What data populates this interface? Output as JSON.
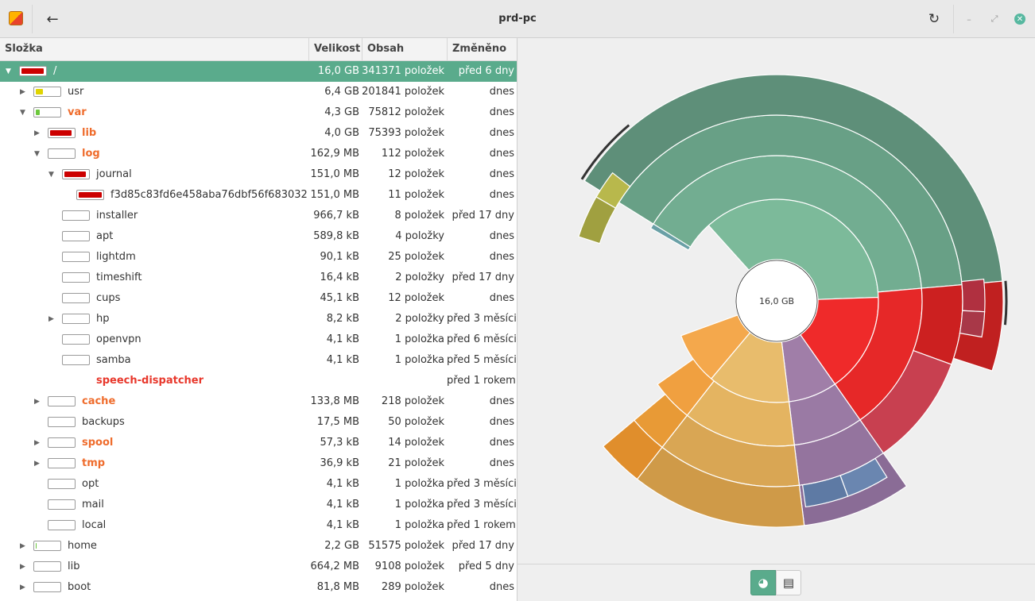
{
  "window": {
    "title": "prd-pc"
  },
  "icons": {
    "back": "arrow-left-icon",
    "refresh": "refresh-icon",
    "minimize": "minimize-icon",
    "maximize": "maximize-icon",
    "close": "close-icon"
  },
  "header": {
    "folder": "Složka",
    "size": "Velikost",
    "contents": "Obsah",
    "modified": "Změněno"
  },
  "rows": [
    {
      "depth": 0,
      "expander": "open",
      "name": "/",
      "style": "normal",
      "fill": 0.95,
      "fillColor": "#cc0000",
      "size": "16,0 GB",
      "items": "341371 položek",
      "modified": "před 6 dny",
      "selected": true
    },
    {
      "depth": 1,
      "expander": "closed",
      "name": "usr",
      "style": "normal",
      "fill": 0.3,
      "fillColor": "#e0d400",
      "size": "6,4 GB",
      "items": "201841 položek",
      "modified": "dnes"
    },
    {
      "depth": 1,
      "expander": "open",
      "name": "var",
      "style": "orange",
      "fill": 0.18,
      "fillColor": "#6cc83c",
      "size": "4,3 GB",
      "items": "75812 položek",
      "modified": "dnes"
    },
    {
      "depth": 2,
      "expander": "closed",
      "name": "lib",
      "style": "orange",
      "fill": 0.92,
      "fillColor": "#cc0000",
      "size": "4,0 GB",
      "items": "75393 položek",
      "modified": "dnes"
    },
    {
      "depth": 2,
      "expander": "open",
      "name": "log",
      "style": "orange",
      "fill": 0,
      "fillColor": "#cc0000",
      "size": "162,9 MB",
      "items": "112 položek",
      "modified": "dnes"
    },
    {
      "depth": 3,
      "expander": "open",
      "name": "journal",
      "style": "normal",
      "fill": 0.92,
      "fillColor": "#cc0000",
      "size": "151,0 MB",
      "items": "12 položek",
      "modified": "dnes"
    },
    {
      "depth": 4,
      "expander": "none",
      "name": "f3d85c83fd6e458aba76dbf56f683032",
      "style": "normal",
      "fill": 1,
      "fillColor": "#cc0000",
      "size": "151,0 MB",
      "items": "11 položek",
      "modified": "dnes"
    },
    {
      "depth": 3,
      "expander": "none",
      "name": "installer",
      "style": "normal",
      "fill": 0,
      "fillColor": "#cc0000",
      "size": "966,7 kB",
      "items": "8 položek",
      "modified": "před 17 dny"
    },
    {
      "depth": 3,
      "expander": "none",
      "name": "apt",
      "style": "normal",
      "fill": 0,
      "fillColor": "#cc0000",
      "size": "589,8 kB",
      "items": "4 položky",
      "modified": "dnes"
    },
    {
      "depth": 3,
      "expander": "none",
      "name": "lightdm",
      "style": "normal",
      "fill": 0,
      "fillColor": "#cc0000",
      "size": "90,1 kB",
      "items": "25 položek",
      "modified": "dnes"
    },
    {
      "depth": 3,
      "expander": "none",
      "name": "timeshift",
      "style": "normal",
      "fill": 0,
      "fillColor": "#cc0000",
      "size": "16,4 kB",
      "items": "2 položky",
      "modified": "před 17 dny"
    },
    {
      "depth": 3,
      "expander": "none",
      "name": "cups",
      "style": "normal",
      "fill": 0,
      "fillColor": "#cc0000",
      "size": "45,1 kB",
      "items": "12 položek",
      "modified": "dnes"
    },
    {
      "depth": 3,
      "expander": "closed",
      "name": "hp",
      "style": "normal",
      "fill": 0,
      "fillColor": "#cc0000",
      "size": "8,2 kB",
      "items": "2 položky",
      "modified": "před 3 měsíci"
    },
    {
      "depth": 3,
      "expander": "none",
      "name": "openvpn",
      "style": "normal",
      "fill": 0,
      "fillColor": "#cc0000",
      "size": "4,1 kB",
      "items": "1 položka",
      "modified": "před 6 měsíci"
    },
    {
      "depth": 3,
      "expander": "none",
      "name": "samba",
      "style": "normal",
      "fill": 0,
      "fillColor": "#cc0000",
      "size": "4,1 kB",
      "items": "1 položka",
      "modified": "před 5 měsíci"
    },
    {
      "depth": 3,
      "expander": "none",
      "name": "speech-dispatcher",
      "style": "red",
      "nobar": true,
      "size": "",
      "items": "",
      "modified": "před 1 rokem"
    },
    {
      "depth": 2,
      "expander": "closed",
      "name": "cache",
      "style": "orange",
      "fill": 0,
      "fillColor": "#cc0000",
      "size": "133,8 MB",
      "items": "218 položek",
      "modified": "dnes"
    },
    {
      "depth": 2,
      "expander": "none",
      "name": "backups",
      "style": "normal",
      "fill": 0,
      "fillColor": "#cc0000",
      "size": "17,5 MB",
      "items": "50 položek",
      "modified": "dnes"
    },
    {
      "depth": 2,
      "expander": "closed",
      "name": "spool",
      "style": "orange",
      "fill": 0,
      "fillColor": "#cc0000",
      "size": "57,3 kB",
      "items": "14 položek",
      "modified": "dnes"
    },
    {
      "depth": 2,
      "expander": "closed",
      "name": "tmp",
      "style": "orange",
      "fill": 0,
      "fillColor": "#cc0000",
      "size": "36,9 kB",
      "items": "21 položek",
      "modified": "dnes"
    },
    {
      "depth": 2,
      "expander": "none",
      "name": "opt",
      "style": "normal",
      "fill": 0,
      "fillColor": "#cc0000",
      "size": "4,1 kB",
      "items": "1 položka",
      "modified": "před 3 měsíci"
    },
    {
      "depth": 2,
      "expander": "none",
      "name": "mail",
      "style": "normal",
      "fill": 0,
      "fillColor": "#cc0000",
      "size": "4,1 kB",
      "items": "1 položka",
      "modified": "před 3 měsíci"
    },
    {
      "depth": 2,
      "expander": "none",
      "name": "local",
      "style": "normal",
      "fill": 0,
      "fillColor": "#cc0000",
      "size": "4,1 kB",
      "items": "1 položka",
      "modified": "před 1 rokem"
    },
    {
      "depth": 1,
      "expander": "closed",
      "name": "home",
      "style": "normal",
      "fill": 0.05,
      "fillColor": "#6cc83c",
      "size": "2,2 GB",
      "items": "51575 položek",
      "modified": "před 17 dny"
    },
    {
      "depth": 1,
      "expander": "closed",
      "name": "lib",
      "style": "normal",
      "fill": 0,
      "fillColor": "#cc0000",
      "size": "664,2 MB",
      "items": "9108 položek",
      "modified": "před 5 dny"
    },
    {
      "depth": 1,
      "expander": "closed",
      "name": "boot",
      "style": "normal",
      "fill": 0,
      "fillColor": "#cc0000",
      "size": "81,8 MB",
      "items": "289 položek",
      "modified": "dnes"
    }
  ],
  "chart": {
    "center_label": "16,0 GB",
    "rings": [
      [
        {
          "start": -132,
          "end": -2,
          "color": "#7cba9a"
        },
        {
          "start": -2,
          "end": 55,
          "color": "#ef2a2a"
        },
        {
          "start": 55,
          "end": 83,
          "color": "#a07ea8"
        },
        {
          "start": 83,
          "end": 130,
          "color": "#e8bc6c"
        },
        {
          "start": 130,
          "end": 160,
          "color": "#f4a84c"
        }
      ],
      [
        {
          "start": -148,
          "end": -5,
          "color": "#72ad91"
        },
        {
          "start": -5,
          "end": 55,
          "color": "#e62828"
        },
        {
          "start": 55,
          "end": 83,
          "color": "#9a7aa4"
        },
        {
          "start": 83,
          "end": 128,
          "color": "#e4b461"
        },
        {
          "start": 128,
          "end": 145,
          "color": "#f0a040"
        },
        {
          "start": -150,
          "end": -148,
          "color": "#6aa0a6"
        }
      ],
      [
        {
          "start": -148,
          "end": -5,
          "color": "#68a086"
        },
        {
          "start": -5,
          "end": 20,
          "color": "#cc2020"
        },
        {
          "start": 20,
          "end": 55,
          "color": "#c84050"
        },
        {
          "start": 55,
          "end": 83,
          "color": "#94749e"
        },
        {
          "start": 83,
          "end": 128,
          "color": "#d9a654"
        },
        {
          "start": 128,
          "end": 140,
          "color": "#e89a36"
        }
      ],
      [
        {
          "start": -148,
          "end": -5,
          "color": "#5e8f79"
        },
        {
          "start": -5,
          "end": 18,
          "color": "#c02020"
        },
        {
          "start": 55,
          "end": 83,
          "color": "#8a6c96"
        },
        {
          "start": 83,
          "end": 128,
          "color": "#cf9a48"
        },
        {
          "start": 128,
          "end": 140,
          "color": "#e08e2c"
        }
      ]
    ],
    "hotspots": [
      {
        "start": -162,
        "end": -150,
        "color": "#a0a040"
      },
      {
        "start": -150,
        "end": -142,
        "color": "#b8b84c"
      },
      {
        "start": -6,
        "end": 3,
        "color": "#b03040"
      },
      {
        "start": 3,
        "end": 10,
        "color": "#a83848"
      },
      {
        "start": 58,
        "end": 70,
        "color": "#6a86b0"
      },
      {
        "start": 70,
        "end": 82,
        "color": "#5e7aa4"
      }
    ]
  },
  "view_buttons": {
    "chart": "chart-view-icon",
    "tree": "tree-view-icon"
  },
  "colors": {
    "accent": "#5aab8c"
  }
}
